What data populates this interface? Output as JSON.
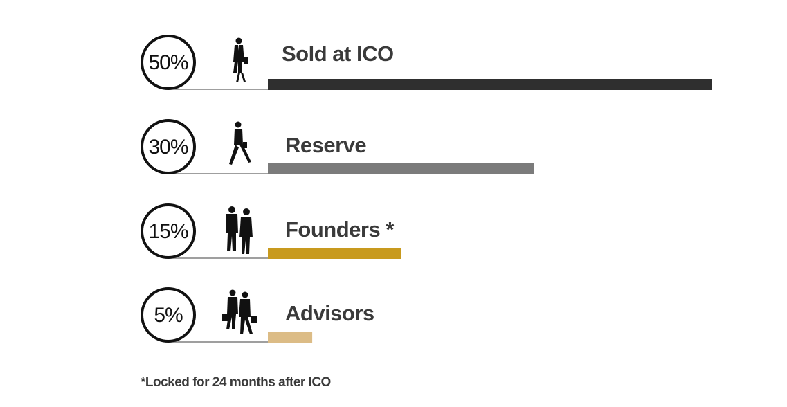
{
  "chart_data": {
    "type": "bar",
    "orientation": "horizontal",
    "categories": [
      "Sold at ICO",
      "Reserve",
      "Founders *",
      "Advisors"
    ],
    "values": [
      50,
      30,
      15,
      5
    ],
    "value_labels": [
      "50%",
      "30%",
      "15%",
      "5%"
    ],
    "unit": "%",
    "colors": [
      "#2f2f2f",
      "#7b7b7b",
      "#c89a1e",
      "#dcbc86"
    ],
    "icons": [
      "businessman-walking-icon",
      "businesswoman-walking-icon",
      "couple-walking-icon",
      "two-people-briefcases-icon"
    ],
    "grid": false,
    "legend": "none"
  },
  "footnote": "*Locked for 24 months after ICO"
}
